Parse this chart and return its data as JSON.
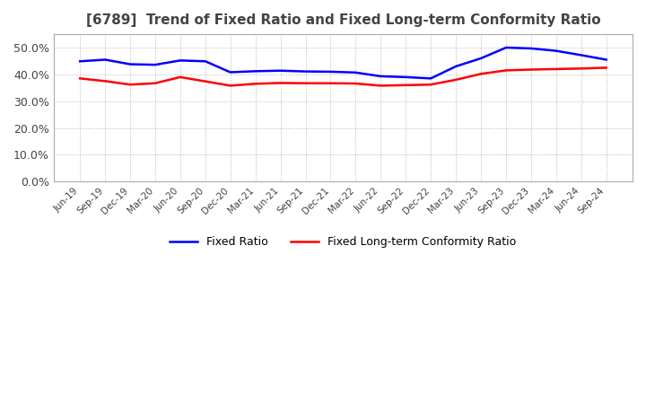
{
  "title": "[6789]  Trend of Fixed Ratio and Fixed Long-term Conformity Ratio",
  "title_fontsize": 11,
  "ylim": [
    0.0,
    0.55
  ],
  "yticks": [
    0.0,
    0.1,
    0.2,
    0.3,
    0.4,
    0.5
  ],
  "background_color": "#ffffff",
  "plot_bg_color": "#ffffff",
  "grid_color": "#aaaaaa",
  "x_labels": [
    "Jun-19",
    "Sep-19",
    "Dec-19",
    "Mar-20",
    "Jun-20",
    "Sep-20",
    "Dec-20",
    "Mar-21",
    "Jun-21",
    "Sep-21",
    "Dec-21",
    "Mar-22",
    "Jun-22",
    "Sep-22",
    "Dec-22",
    "Mar-23",
    "Jun-23",
    "Sep-23",
    "Dec-23",
    "Mar-24",
    "Jun-24",
    "Sep-24"
  ],
  "fixed_ratio": [
    0.449,
    0.455,
    0.438,
    0.436,
    0.452,
    0.449,
    0.408,
    0.412,
    0.414,
    0.411,
    0.41,
    0.407,
    0.393,
    0.39,
    0.385,
    0.43,
    0.46,
    0.5,
    0.497,
    0.488,
    0.472,
    0.455
  ],
  "fixed_lt_ratio": [
    0.385,
    0.375,
    0.362,
    0.367,
    0.39,
    0.374,
    0.358,
    0.365,
    0.368,
    0.367,
    0.367,
    0.366,
    0.358,
    0.36,
    0.362,
    0.38,
    0.402,
    0.415,
    0.418,
    0.42,
    0.422,
    0.425
  ],
  "fixed_ratio_color": "#0000ff",
  "fixed_lt_ratio_color": "#ff0000",
  "line_width": 1.8,
  "legend_ncol": 2,
  "legend_fontsize": 9
}
